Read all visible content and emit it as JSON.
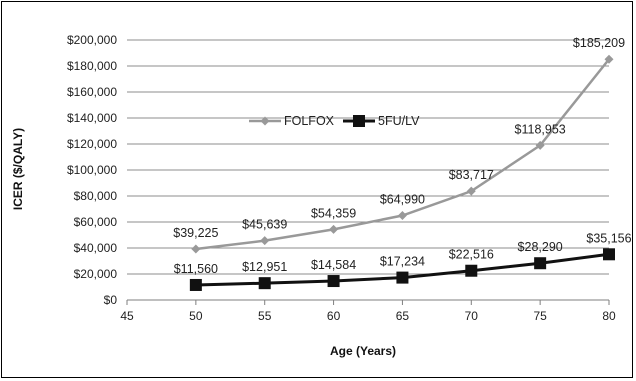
{
  "chart_data": {
    "type": "line",
    "title": "",
    "xlabel": "Age (Years)",
    "ylabel": "ICER ($/QALY)",
    "x": [
      50,
      55,
      60,
      65,
      70,
      75,
      80
    ],
    "xlim": [
      45,
      80
    ],
    "x_ticks": [
      "45",
      "50",
      "55",
      "60",
      "65",
      "70",
      "75",
      "80"
    ],
    "ylim": [
      0,
      200000
    ],
    "y_ticks": [
      "$0",
      "$20,000",
      "$40,000",
      "$60,000",
      "$80,000",
      "$100,000",
      "$120,000",
      "$140,000",
      "$160,000",
      "$180,000",
      "$200,000"
    ],
    "grid": "horizontal",
    "legend_position": "middle-center",
    "series": [
      {
        "name": "FOLFOX",
        "color": "#999999",
        "marker": "diamond",
        "values": [
          39225,
          45639,
          54359,
          64990,
          83717,
          118953,
          185209
        ],
        "labels": [
          "$39,225",
          "$45,639",
          "$54,359",
          "$64,990",
          "$83,717",
          "$118,953",
          "$185,209"
        ]
      },
      {
        "name": "5FU/LV",
        "color": "#111111",
        "marker": "square",
        "values": [
          11560,
          12951,
          14584,
          17234,
          22516,
          28290,
          35156
        ],
        "labels": [
          "$11,560",
          "$12,951",
          "$14,584",
          "$17,234",
          "$22,516",
          "$28,290",
          "$35,156"
        ]
      }
    ]
  }
}
